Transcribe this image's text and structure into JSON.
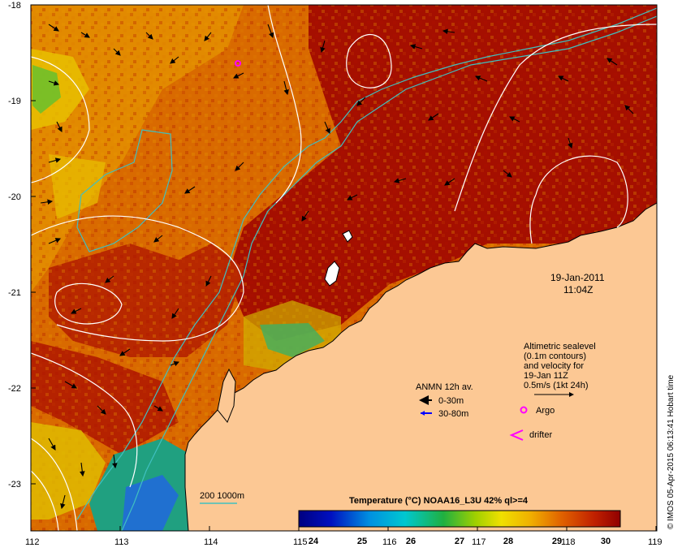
{
  "map": {
    "longitude_ticks": [
      "112",
      "113",
      "114",
      "115",
      "116",
      "117",
      "118",
      "119"
    ],
    "latitude_ticks": [
      "-18",
      "-19",
      "-20",
      "-21",
      "-22",
      "-23"
    ],
    "extent": {
      "lon": [
        112,
        119
      ],
      "lat": [
        -23.5,
        -18
      ]
    },
    "date": "19-Jan-2011",
    "time": "11:04Z",
    "altimetry_note": {
      "line1": "Altimetric sealevel",
      "line2": "(0.1m contours)",
      "line3": "and velocity for",
      "line4": "19-Jan 11Z",
      "scale_label": "0.5m/s (1kt 24h)"
    },
    "legend": {
      "anmn_title": "ANMN 12h av.",
      "anmn_shallow": "0-30m",
      "anmn_deep": "30-80m",
      "argo": "Argo",
      "drifter": "drifter",
      "bathymetry": "200  1000m"
    },
    "colorbar": {
      "title": "Temperature (°C) NOAA16_L3U 42% ql>=4",
      "ticks": [
        "24",
        "25",
        "26",
        "27",
        "28",
        "29",
        "30"
      ],
      "range": [
        23.7,
        30.3
      ]
    },
    "credit": "© IMOS 05-Apr-2015 06:13:41 Hobart time",
    "colors": {
      "land": "#fcc894",
      "sst_hot": "#a50f00",
      "sst_warm": "#d95a00",
      "sst_mid": "#e8a000",
      "bathymetry": "#40c0c0",
      "contour": "#ffffff",
      "argo": "#ff00ff",
      "anmn_shallow": "#000000",
      "anmn_deep": "#0000ff"
    }
  }
}
